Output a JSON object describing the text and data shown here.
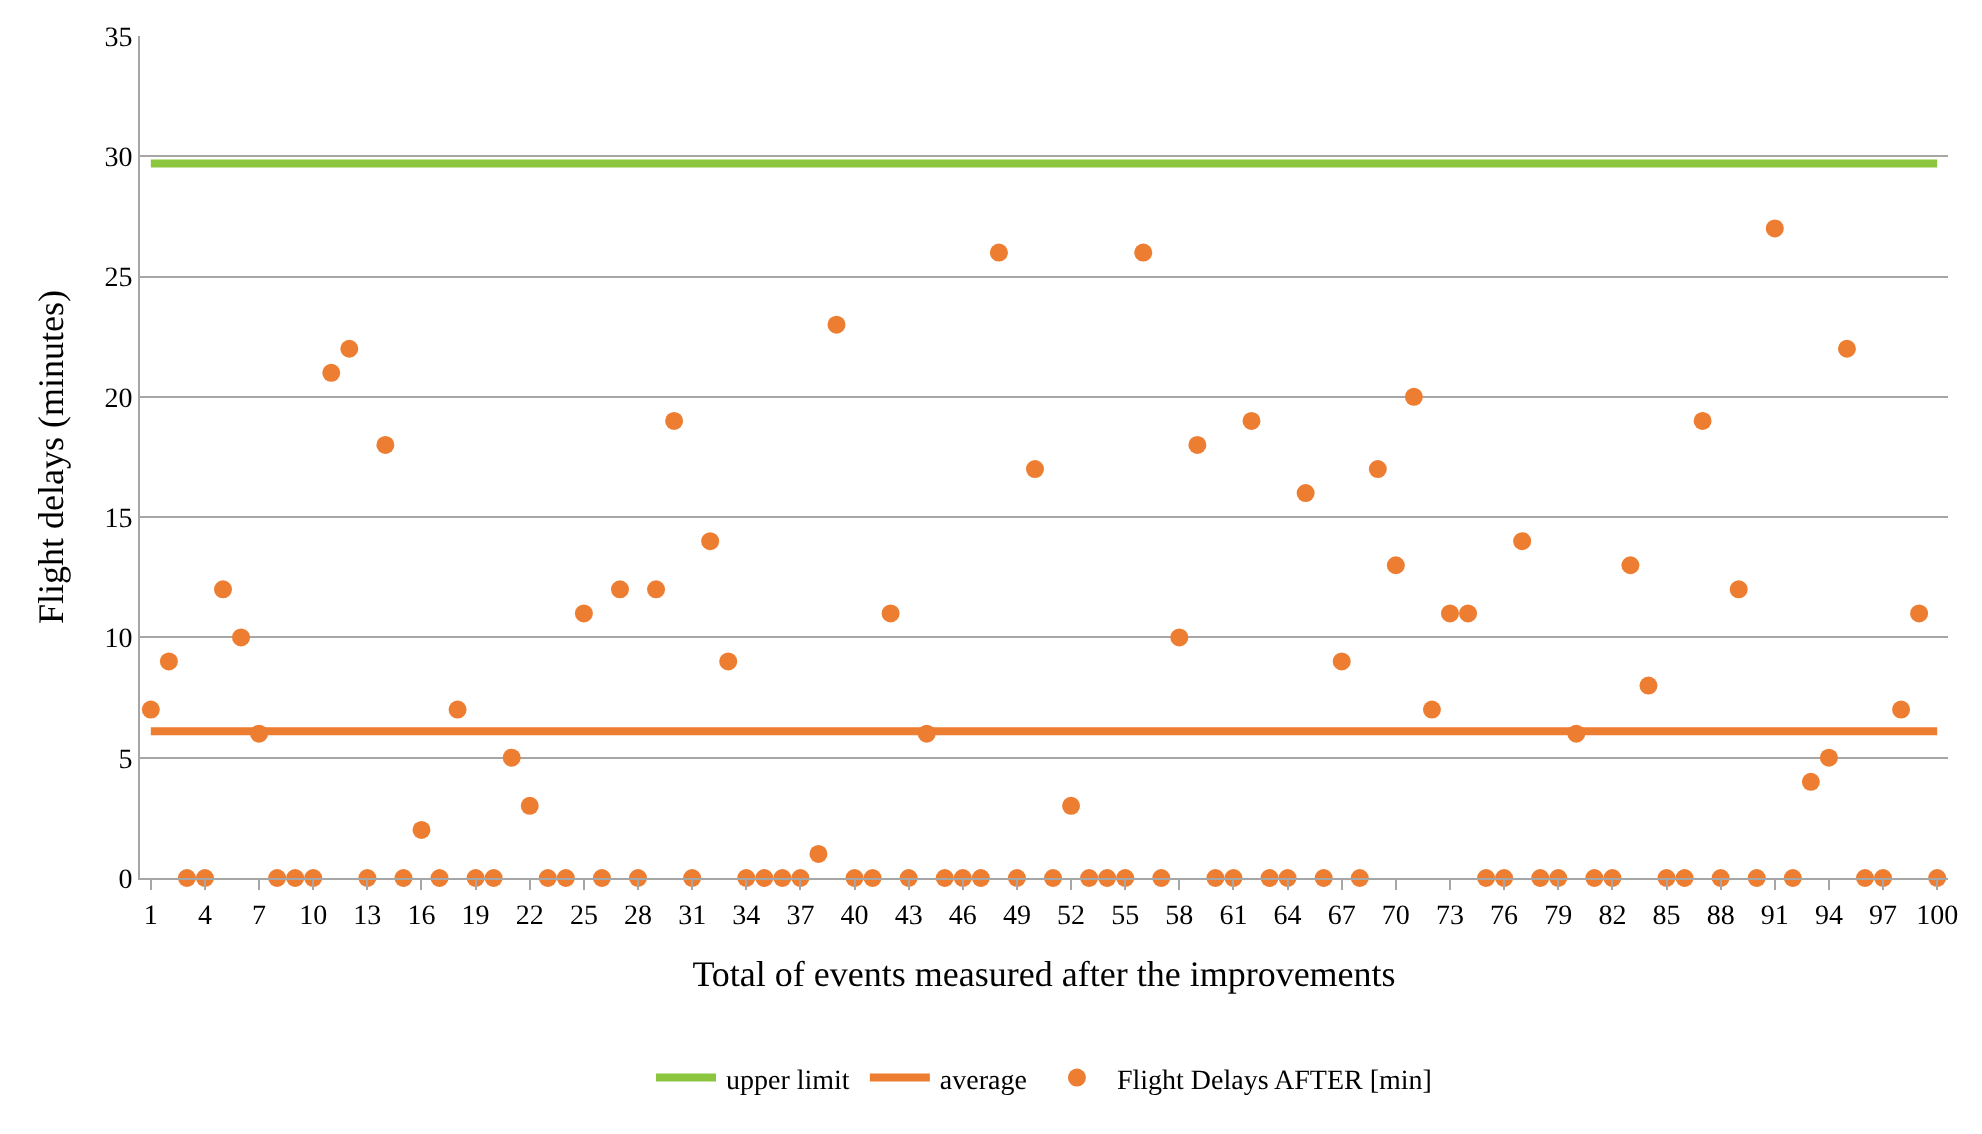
{
  "chart_data": {
    "type": "scatter",
    "xlabel": "Total of events measured after the improvements",
    "ylabel": "Flight delays (minutes)",
    "xlim": [
      0.4,
      100.6
    ],
    "xticks": [
      1,
      4,
      7,
      10,
      13,
      16,
      19,
      22,
      25,
      28,
      31,
      34,
      37,
      40,
      43,
      46,
      49,
      52,
      55,
      58,
      61,
      64,
      67,
      70,
      73,
      76,
      79,
      82,
      85,
      88,
      91,
      94,
      97,
      100
    ],
    "ylim": [
      0,
      35
    ],
    "yticks": [
      0,
      5,
      10,
      15,
      20,
      25,
      30,
      35
    ],
    "grid": "y",
    "legend": "bottom",
    "series": [
      {
        "name": "upper limit",
        "type": "line",
        "color": "#8cc63f",
        "x": [
          1,
          100
        ],
        "values": [
          29.7,
          29.7
        ]
      },
      {
        "name": "average",
        "type": "line",
        "color": "#ed7d31",
        "x": [
          1,
          100
        ],
        "values": [
          6.1,
          6.1
        ]
      },
      {
        "name": "Flight Delays AFTER [min]",
        "marker": "circle",
        "color": "#ed7d31",
        "x": [
          1,
          2,
          3,
          4,
          5,
          6,
          7,
          8,
          9,
          10,
          11,
          12,
          13,
          14,
          15,
          16,
          17,
          18,
          19,
          20,
          21,
          22,
          23,
          24,
          25,
          26,
          27,
          28,
          29,
          30,
          31,
          32,
          33,
          34,
          35,
          36,
          37,
          38,
          39,
          40,
          41,
          42,
          43,
          44,
          45,
          46,
          47,
          48,
          49,
          50,
          51,
          52,
          53,
          54,
          55,
          56,
          57,
          58,
          59,
          60,
          61,
          62,
          63,
          64,
          65,
          66,
          67,
          68,
          69,
          70,
          71,
          72,
          73,
          74,
          75,
          76,
          77,
          78,
          79,
          80,
          81,
          82,
          83,
          84,
          85,
          86,
          87,
          88,
          89,
          90,
          91,
          92,
          93,
          94,
          95,
          96,
          97,
          98,
          99,
          100
        ],
        "values": [
          7,
          9,
          0,
          0,
          12,
          10,
          6,
          0,
          0,
          0,
          21,
          22,
          0,
          18,
          0,
          2,
          0,
          7,
          0,
          0,
          5,
          3,
          0,
          0,
          11,
          0,
          12,
          0,
          12,
          19,
          0,
          14,
          9,
          0,
          0,
          0,
          0,
          1,
          23,
          0,
          0,
          11,
          0,
          6,
          0,
          0,
          0,
          26,
          0,
          17,
          0,
          3,
          0,
          0,
          0,
          26,
          0,
          10,
          18,
          0,
          0,
          19,
          0,
          0,
          16,
          0,
          9,
          0,
          17,
          13,
          20,
          7,
          11,
          11,
          0,
          0,
          14,
          0,
          0,
          6,
          0,
          0,
          13,
          8,
          0,
          0,
          19,
          0,
          12,
          0,
          27,
          0,
          4,
          5,
          22,
          0,
          0,
          7,
          11,
          0
        ]
      }
    ]
  }
}
